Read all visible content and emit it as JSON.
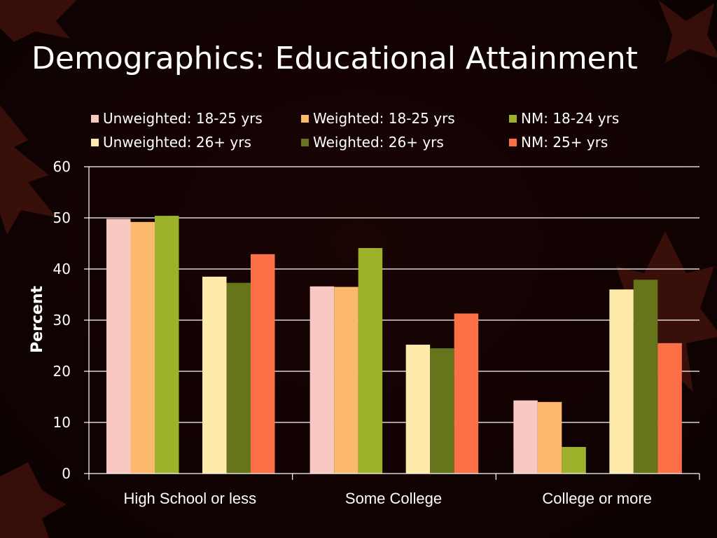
{
  "slide": {
    "title": "Demographics:  Educational Attainment"
  },
  "colors": {
    "background": "#120202",
    "leaf": "#5a1a10",
    "text": "#ffffff",
    "grid": "#ffffff"
  },
  "chart_data": {
    "type": "bar",
    "title": "",
    "xlabel": "",
    "ylabel": "Percent",
    "ylim": [
      0,
      60
    ],
    "yticks": [
      0,
      10,
      20,
      30,
      40,
      50,
      60
    ],
    "grid": true,
    "legend_placement": "top",
    "categories": [
      "High School or less",
      "Some College",
      "College or more"
    ],
    "series": [
      {
        "name": "Unweighted: 18-25 yrs",
        "color": "#f9c8c3",
        "values": [
          49.8,
          36.6,
          14.3
        ]
      },
      {
        "name": "Weighted: 18-25 yrs",
        "color": "#fdb96b",
        "values": [
          49.2,
          36.5,
          14.0
        ]
      },
      {
        "name": "NM: 18-24 yrs",
        "color": "#9cb22a",
        "values": [
          50.4,
          44.1,
          5.2
        ]
      },
      {
        "name": "Unweighted: 26+ yrs",
        "color": "#feeaaa",
        "values": [
          38.5,
          25.2,
          36.0
        ]
      },
      {
        "name": "Weighted: 26+ yrs",
        "color": "#66741b",
        "values": [
          37.3,
          24.5,
          37.9
        ]
      },
      {
        "name": "NM: 25+ yrs",
        "color": "#fd6f47",
        "values": [
          42.9,
          31.3,
          25.5
        ]
      }
    ]
  }
}
